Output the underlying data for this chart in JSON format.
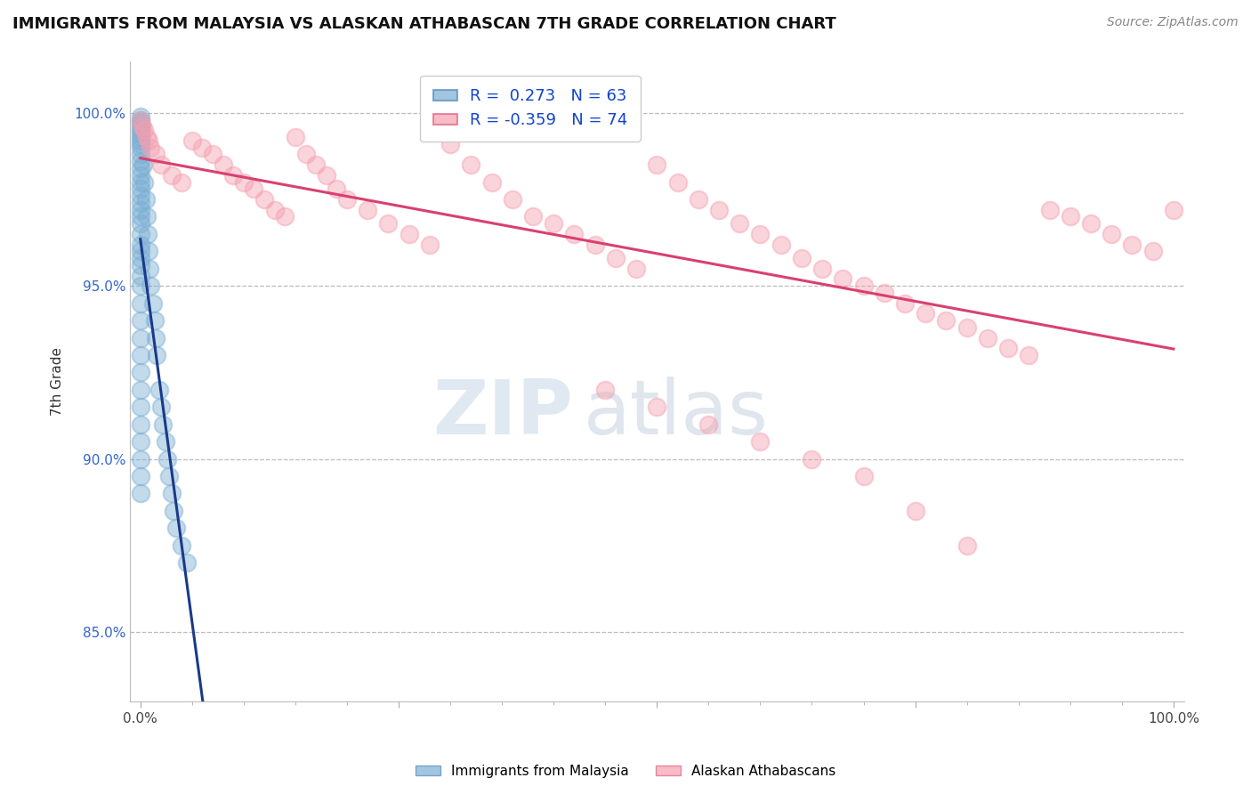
{
  "title": "IMMIGRANTS FROM MALAYSIA VS ALASKAN ATHABASCAN 7TH GRADE CORRELATION CHART",
  "source": "Source: ZipAtlas.com",
  "ylabel": "7th Grade",
  "y_tick_positions": [
    85.0,
    90.0,
    95.0,
    100.0
  ],
  "y_tick_labels": [
    "85.0%",
    "90.0%",
    "95.0%",
    "100.0%"
  ],
  "ylim": [
    83.0,
    101.5
  ],
  "xlim": [
    -1.0,
    101.0
  ],
  "blue_R": 0.273,
  "blue_N": 63,
  "pink_R": -0.359,
  "pink_N": 74,
  "blue_color": "#7BAFD4",
  "pink_color": "#F4A0B0",
  "blue_line_color": "#1A3A8A",
  "pink_line_color": "#D94070",
  "legend_label_blue": "Immigrants from Malaysia",
  "legend_label_pink": "Alaskan Athabascans",
  "background_color": "#FFFFFF",
  "grid_color": "#BBBBBB",
  "blue_x": [
    0.0,
    0.0,
    0.0,
    0.0,
    0.0,
    0.0,
    0.0,
    0.0,
    0.0,
    0.0,
    0.0,
    0.0,
    0.0,
    0.0,
    0.0,
    0.0,
    0.0,
    0.0,
    0.0,
    0.0,
    0.0,
    0.0,
    0.0,
    0.0,
    0.0,
    0.0,
    0.0,
    0.0,
    0.0,
    0.0,
    0.0,
    0.0,
    0.0,
    0.0,
    0.0,
    0.0,
    0.0,
    0.0,
    0.0,
    0.0,
    0.3,
    0.4,
    0.5,
    0.6,
    0.7,
    0.8,
    0.9,
    1.0,
    1.2,
    1.4,
    1.5,
    1.6,
    1.8,
    2.0,
    2.2,
    2.4,
    2.6,
    2.8,
    3.0,
    3.2,
    3.5,
    4.0,
    4.5
  ],
  "blue_y": [
    99.9,
    99.8,
    99.7,
    99.6,
    99.5,
    99.4,
    99.3,
    99.2,
    99.1,
    99.0,
    98.8,
    98.6,
    98.4,
    98.2,
    98.0,
    97.8,
    97.6,
    97.4,
    97.2,
    97.0,
    96.8,
    96.5,
    96.2,
    96.0,
    95.8,
    95.6,
    95.3,
    95.0,
    94.5,
    94.0,
    93.5,
    93.0,
    92.5,
    92.0,
    91.5,
    91.0,
    90.5,
    90.0,
    89.5,
    89.0,
    98.5,
    98.0,
    97.5,
    97.0,
    96.5,
    96.0,
    95.5,
    95.0,
    94.5,
    94.0,
    93.5,
    93.0,
    92.0,
    91.5,
    91.0,
    90.5,
    90.0,
    89.5,
    89.0,
    88.5,
    88.0,
    87.5,
    87.0
  ],
  "pink_x": [
    0.0,
    0.2,
    0.4,
    0.6,
    0.8,
    1.0,
    1.5,
    2.0,
    3.0,
    4.0,
    5.0,
    6.0,
    7.0,
    8.0,
    9.0,
    10.0,
    11.0,
    12.0,
    13.0,
    14.0,
    15.0,
    16.0,
    17.0,
    18.0,
    19.0,
    20.0,
    22.0,
    24.0,
    26.0,
    28.0,
    30.0,
    32.0,
    34.0,
    36.0,
    38.0,
    40.0,
    42.0,
    44.0,
    46.0,
    48.0,
    50.0,
    52.0,
    54.0,
    56.0,
    58.0,
    60.0,
    62.0,
    64.0,
    66.0,
    68.0,
    70.0,
    72.0,
    74.0,
    76.0,
    78.0,
    80.0,
    82.0,
    84.0,
    86.0,
    88.0,
    90.0,
    92.0,
    94.0,
    96.0,
    98.0,
    100.0,
    45.0,
    50.0,
    55.0,
    60.0,
    65.0,
    70.0,
    75.0,
    80.0
  ],
  "pink_y": [
    99.8,
    99.6,
    99.5,
    99.3,
    99.2,
    99.0,
    98.8,
    98.5,
    98.2,
    98.0,
    99.2,
    99.0,
    98.8,
    98.5,
    98.2,
    98.0,
    97.8,
    97.5,
    97.2,
    97.0,
    99.3,
    98.8,
    98.5,
    98.2,
    97.8,
    97.5,
    97.2,
    96.8,
    96.5,
    96.2,
    99.1,
    98.5,
    98.0,
    97.5,
    97.0,
    96.8,
    96.5,
    96.2,
    95.8,
    95.5,
    98.5,
    98.0,
    97.5,
    97.2,
    96.8,
    96.5,
    96.2,
    95.8,
    95.5,
    95.2,
    95.0,
    94.8,
    94.5,
    94.2,
    94.0,
    93.8,
    93.5,
    93.2,
    93.0,
    97.2,
    97.0,
    96.8,
    96.5,
    96.2,
    96.0,
    97.2,
    92.0,
    91.5,
    91.0,
    90.5,
    90.0,
    89.5,
    88.5,
    87.5
  ]
}
